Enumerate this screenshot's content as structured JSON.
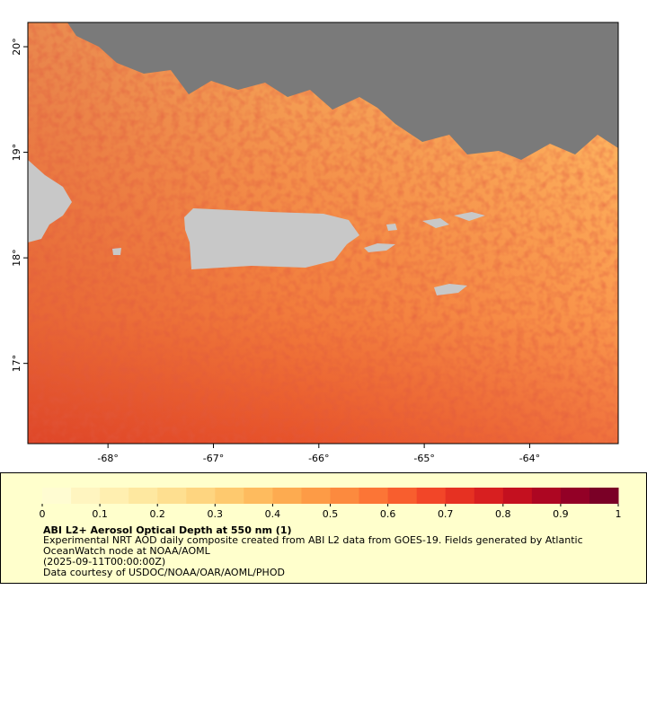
{
  "map": {
    "xlim": [
      -68.76,
      -63.16
    ],
    "ylim": [
      16.24,
      20.23
    ],
    "xticks": [
      {
        "value": -68,
        "label": "-68°"
      },
      {
        "value": -67,
        "label": "-67°"
      },
      {
        "value": -66,
        "label": "-66°"
      },
      {
        "value": -65,
        "label": "-65°"
      },
      {
        "value": -64,
        "label": "-64°"
      }
    ],
    "yticks": [
      {
        "value": 17,
        "label": "17°"
      },
      {
        "value": 18,
        "label": "18°"
      },
      {
        "value": 19,
        "label": "19°"
      },
      {
        "value": 20,
        "label": "20°"
      }
    ]
  },
  "legend": {
    "clim": [
      0,
      1
    ],
    "ticks": [
      0,
      0.1,
      0.2,
      0.3,
      0.4,
      0.5,
      0.6,
      0.7,
      0.8,
      0.9,
      1
    ],
    "colors": [
      "#fffcd2",
      "#fff5c0",
      "#ffefb0",
      "#fee8a0",
      "#fedf90",
      "#fed580",
      "#fec96e",
      "#febb5e",
      "#fdab50",
      "#fd9b46",
      "#fc8a3e",
      "#fc7536",
      "#f85e2e",
      "#f24628",
      "#e63122",
      "#d81f20",
      "#c4101f",
      "#ad0622",
      "#930026",
      "#7a0026"
    ],
    "title": "ABI L2+ Aerosol Optical Depth at 550 nm (1)",
    "lines": [
      "Experimental NRT AOD daily composite created from ABI L2 data from GOES-19. Fields generated by Atlantic",
      "OceanWatch node at NOAA/AOML",
      "(2025-09-11T00:00:00Z)",
      "Data courtesy of USDOC/NOAA/OAR/AOML/PHOD"
    ]
  }
}
